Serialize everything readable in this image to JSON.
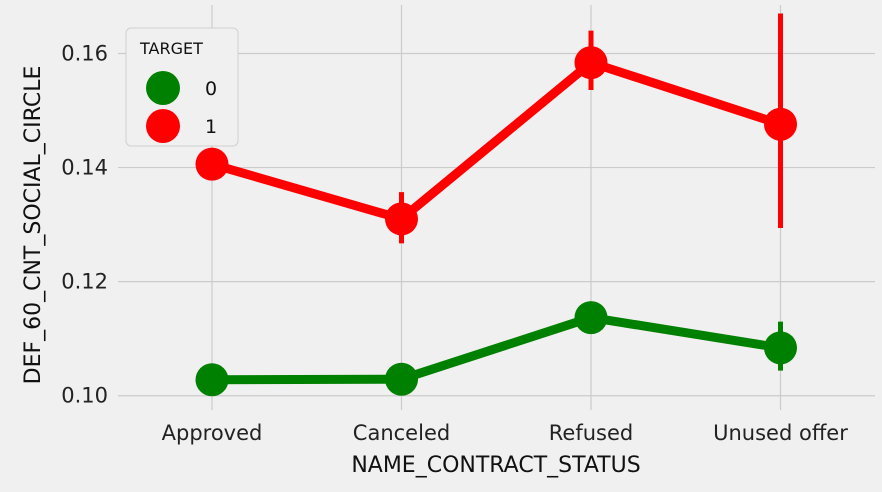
{
  "chart_data": {
    "type": "line",
    "xlabel": "NAME_CONTRACT_STATUS",
    "ylabel": "DEF_60_CNT_SOCIAL_CIRCLE",
    "categories": [
      "Approved",
      "Canceled",
      "Refused",
      "Unused offer"
    ],
    "ylim": [
      0.0975,
      0.1685
    ],
    "yticks": [
      0.1,
      0.12,
      0.14,
      0.16
    ],
    "ytick_labels": [
      "0.10",
      "0.12",
      "0.14",
      "0.16"
    ],
    "grid": true,
    "legend": {
      "title": "TARGET",
      "placement": "top-left"
    },
    "series": [
      {
        "name": "0",
        "color": "#008000",
        "values": [
          0.1028,
          0.1029,
          0.1137,
          0.1084
        ],
        "ci_low": [
          0.1023,
          0.1015,
          0.1122,
          0.1044
        ],
        "ci_high": [
          0.1033,
          0.1043,
          0.1152,
          0.113
        ]
      },
      {
        "name": "1",
        "color": "#ff0000",
        "values": [
          0.1406,
          0.131,
          0.1584,
          0.1476
        ],
        "ci_low": [
          0.1396,
          0.1267,
          0.1536,
          0.1294
        ],
        "ci_high": [
          0.1416,
          0.1357,
          0.164,
          0.167
        ]
      }
    ]
  }
}
